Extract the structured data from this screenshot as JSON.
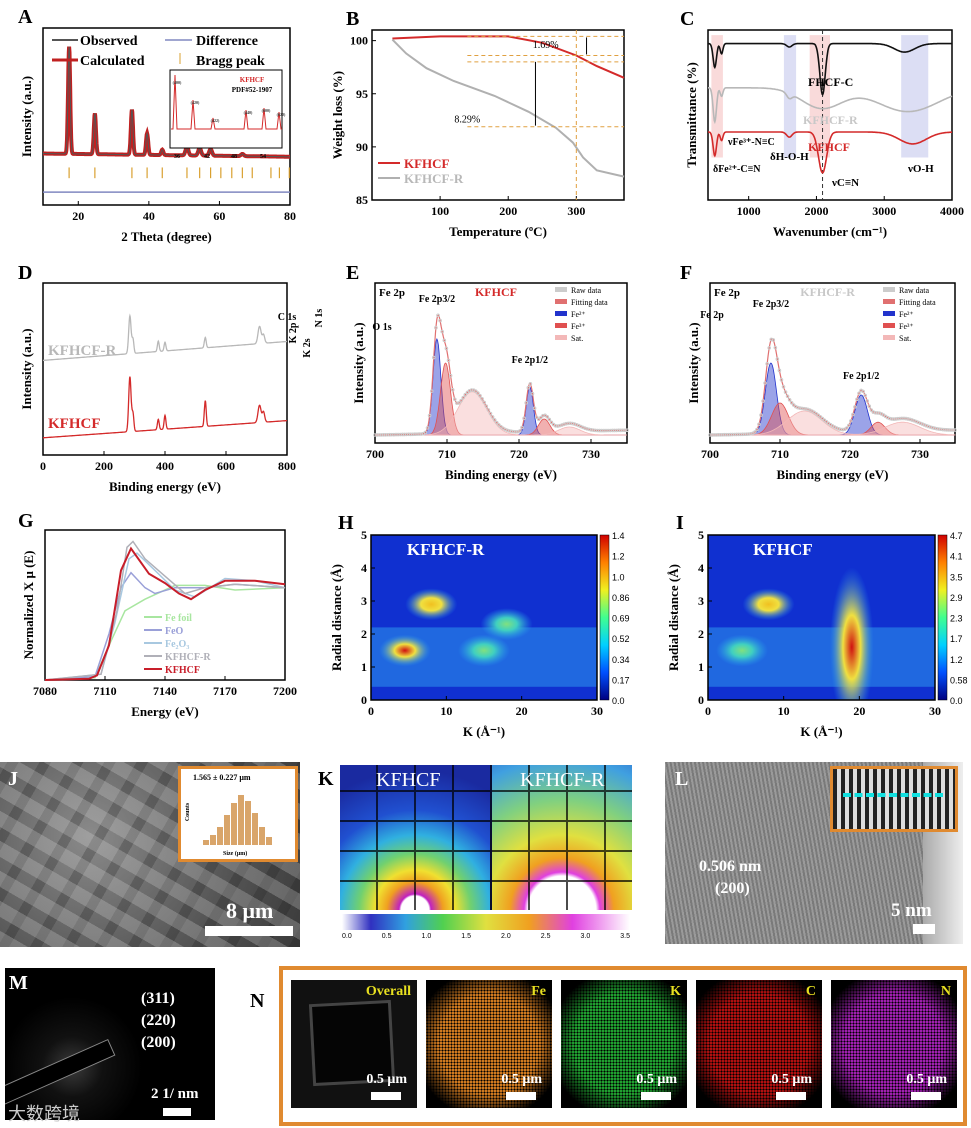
{
  "panels": {
    "A": "A",
    "B": "B",
    "C": "C",
    "D": "D",
    "E": "E",
    "F": "F",
    "G": "G",
    "H": "H",
    "I": "I",
    "J": "J",
    "K": "K",
    "L": "L",
    "M": "M",
    "N": "N"
  },
  "chart_data": {
    "A": {
      "type": "line",
      "xlabel": "2 Theta (degree)",
      "ylabel": "Intensity (a.u.)",
      "xlim": [
        10,
        80
      ],
      "ylim": [
        -0.45,
        1.2
      ],
      "xticks": [
        20,
        40,
        60,
        80
      ],
      "legend": [
        "Observed",
        "Difference",
        "Calculated",
        "Bragg peak"
      ],
      "peaks": [
        [
          17.4,
          1.0,
          0.3
        ],
        [
          24.7,
          0.38,
          0.3
        ],
        [
          35.2,
          0.42,
          0.3
        ],
        [
          39.5,
          0.2,
          0.3
        ],
        [
          43.8,
          0.05,
          0.3
        ],
        [
          50.8,
          0.08,
          0.4
        ],
        [
          54.4,
          0.07,
          0.4
        ],
        [
          57.5,
          0.06,
          0.4
        ],
        [
          66.5,
          0.02,
          0.4
        ]
      ],
      "baseline": [
        0.03,
        0.0
      ],
      "bragg": [
        17.4,
        24.7,
        35.2,
        39.5,
        43.8,
        50.8,
        54.4,
        57.5,
        60.4,
        63.5,
        66.5,
        69.3,
        74.6,
        77.0,
        79.8
      ],
      "inset": {
        "title": "KFHCF",
        "ref": "PDF#52-1907",
        "xticks": [
          36,
          42,
          48,
          54
        ],
        "hkl": [
          "(400)",
          "(420)",
          "(422)",
          "(440)",
          "(600)",
          "(620)"
        ]
      }
    },
    "B": {
      "type": "line",
      "xlabel": "Temperature (ºC)",
      "ylabel": "Weight loss (%)",
      "xlim": [
        0,
        370
      ],
      "ylim": [
        85,
        101
      ],
      "xticks": [
        100,
        200,
        300
      ],
      "yticks": [
        85,
        90,
        95,
        100
      ],
      "series": [
        {
          "name": "KFHCF",
          "color": "#d42a2a",
          "points": [
            [
              30,
              100.2
            ],
            [
              100,
              100.4
            ],
            [
              200,
              100.4
            ],
            [
              250,
              99.8
            ],
            [
              300,
              98.6
            ],
            [
              330,
              97.6
            ],
            [
              370,
              96.5
            ]
          ]
        },
        {
          "name": "KFHCF-R",
          "color": "#b0b0b0",
          "points": [
            [
              30,
              100.1
            ],
            [
              50,
              98.8
            ],
            [
              80,
              97.4
            ],
            [
              120,
              96.2
            ],
            [
              180,
              94.8
            ],
            [
              230,
              93.3
            ],
            [
              270,
              91.8
            ],
            [
              295,
              90.4
            ],
            [
              310,
              89.0
            ],
            [
              330,
              87.8
            ],
            [
              370,
              87.2
            ]
          ]
        }
      ],
      "annotations": [
        "1.69%",
        "8.29%"
      ]
    },
    "C": {
      "type": "line",
      "xlabel": "Wavenumber (cm⁻¹)",
      "ylabel": "Transmittance (%)",
      "xlim": [
        400,
        4000
      ],
      "ylim": [
        0,
        1
      ],
      "xticks": [
        1000,
        2000,
        3000,
        4000
      ],
      "series": [
        {
          "name": "FHCF-C",
          "color": "#111",
          "baseline": [
            0.92,
            0.92
          ],
          "peaks": [
            [
              500,
              -0.14,
              25
            ],
            [
              600,
              -0.06,
              20
            ],
            [
              1600,
              -0.02,
              40
            ],
            [
              2090,
              -0.3,
              40
            ],
            [
              3300,
              -0.05,
              150
            ]
          ]
        },
        {
          "name": "KFHCF-R",
          "color": "#b8b8b8",
          "baseline": [
            0.66,
            0.66
          ],
          "peaks": [
            [
              500,
              -0.2,
              25
            ],
            [
              600,
              -0.05,
              20
            ],
            [
              1600,
              -0.03,
              40
            ],
            [
              2080,
              -0.12,
              300
            ],
            [
              3350,
              -0.14,
              450
            ]
          ]
        },
        {
          "name": "KFHCF",
          "color": "#d42a2a",
          "baseline": [
            0.4,
            0.4
          ],
          "peaks": [
            [
              500,
              -0.14,
              25
            ],
            [
              600,
              -0.05,
              20
            ],
            [
              1600,
              -0.03,
              40
            ],
            [
              2090,
              -0.24,
              60
            ],
            [
              3420,
              -0.07,
              200
            ]
          ]
        }
      ],
      "annotations": [
        "νFe³⁺-N≡C",
        "δFe²⁺-C≡N",
        "δH-O-H",
        "νC≡N",
        "νO-H"
      ]
    },
    "D": {
      "type": "line",
      "xlabel": "Binding energy (eV)",
      "ylabel": "Intensity (a.u.)",
      "xlim": [
        0,
        800
      ],
      "ylim": [
        0,
        1
      ],
      "xticks": [
        0,
        200,
        400,
        600,
        800
      ],
      "series": [
        {
          "name": "KFHCF-R",
          "color": "#b8b8b8",
          "baseline": [
            0.55,
            0.66
          ],
          "peaks": [
            [
              285,
              0.22,
              4
            ],
            [
              295,
              0.08,
              3
            ],
            [
              378,
              0.06,
              3
            ],
            [
              400,
              0.05,
              3
            ],
            [
              532,
              0.06,
              3
            ],
            [
              710,
              0.1,
              5
            ],
            [
              723,
              0.05,
              4
            ]
          ]
        },
        {
          "name": "KFHCF",
          "color": "#d42a2a",
          "baseline": [
            0.1,
            0.2
          ],
          "peaks": [
            [
              285,
              0.32,
              4
            ],
            [
              295,
              0.1,
              3
            ],
            [
              378,
              0.06,
              3
            ],
            [
              400,
              0.08,
              3
            ],
            [
              532,
              0.15,
              3
            ],
            [
              710,
              0.1,
              5
            ],
            [
              723,
              0.06,
              4
            ]
          ]
        }
      ],
      "peak_labels": [
        "C 1s",
        "K 2p",
        "K 2s",
        "N 1s",
        "O 1s",
        "Fe 2p"
      ]
    },
    "E": {
      "type": "line",
      "title": "Fe 2p",
      "sample": "KFHCF",
      "xlabel": "Binding energy (eV)",
      "ylabel": "Intensity (a.u.)",
      "xlim": [
        700,
        735
      ],
      "ylim": [
        0,
        1
      ],
      "xticks": [
        700,
        710,
        720,
        730
      ],
      "components": [
        {
          "name": "Fe²⁺",
          "color": "#2233cc",
          "peaks": [
            [
              708.6,
              0.6,
              0.55
            ],
            [
              721.5,
              0.3,
              0.5
            ]
          ]
        },
        {
          "name": "Fe³⁺",
          "color": "#e05050",
          "peaks": [
            [
              709.8,
              0.45,
              0.7
            ],
            [
              723.5,
              0.1,
              0.8
            ]
          ]
        },
        {
          "name": "Sat.",
          "color": "#f3b8b8",
          "peaks": [
            [
              713.5,
              0.27,
              2.0
            ],
            [
              727,
              0.05,
              1.5
            ]
          ]
        }
      ],
      "legend": [
        "Raw data",
        "Fitting data",
        "Fe²⁺",
        "Fe³⁺",
        "Sat."
      ],
      "peak_labels": [
        "Fe 2p3/2",
        "Fe 2p1/2"
      ]
    },
    "F": {
      "type": "line",
      "title": "Fe 2p",
      "sample": "KFHCF-R",
      "xlabel": "Binding energy (eV)",
      "ylabel": "Intensity (a.u.)",
      "xlim": [
        700,
        735
      ],
      "ylim": [
        0,
        1
      ],
      "xticks": [
        700,
        710,
        720,
        730
      ],
      "components": [
        {
          "name": "Fe²⁺",
          "color": "#2233cc",
          "peaks": [
            [
              708.7,
              0.45,
              0.8
            ],
            [
              721.6,
              0.25,
              0.9
            ]
          ]
        },
        {
          "name": "Fe³⁺",
          "color": "#e05050",
          "peaks": [
            [
              710.0,
              0.2,
              1.2
            ],
            [
              724,
              0.08,
              1.0
            ]
          ]
        },
        {
          "name": "Sat.",
          "color": "#f3b8b8",
          "peaks": [
            [
              713.5,
              0.15,
              2.5
            ],
            [
              727.5,
              0.08,
              2.5
            ]
          ]
        }
      ],
      "legend": [
        "Raw data",
        "Fitting data",
        "Fe²⁺",
        "Fe³⁺",
        "Sat."
      ],
      "peak_labels": [
        "Fe 2p3/2",
        "Fe 2p1/2"
      ]
    },
    "G": {
      "type": "line",
      "xlabel": "Energy (eV)",
      "ylabel": "Normalized X μ (E)",
      "xlim": [
        7080,
        7200
      ],
      "ylim": [
        0,
        1.3
      ],
      "xticks": [
        7080,
        7110,
        7140,
        7170,
        7200
      ],
      "series": [
        {
          "name": "Fe foil",
          "color": "#a8e6a0",
          "points": [
            [
              7080,
              0
            ],
            [
              7105,
              0.02
            ],
            [
              7112,
              0.3
            ],
            [
              7120,
              0.6
            ],
            [
              7130,
              0.7
            ],
            [
              7145,
              0.82
            ],
            [
              7160,
              0.82
            ],
            [
              7175,
              0.78
            ],
            [
              7200,
              0.8
            ]
          ]
        },
        {
          "name": "FeO",
          "color": "#9aa0d8",
          "points": [
            [
              7080,
              0
            ],
            [
              7105,
              0.03
            ],
            [
              7112,
              0.4
            ],
            [
              7118,
              0.8
            ],
            [
              7123,
              0.93
            ],
            [
              7130,
              0.8
            ],
            [
              7135,
              0.75
            ],
            [
              7145,
              0.8
            ],
            [
              7160,
              0.8
            ],
            [
              7175,
              0.83
            ],
            [
              7200,
              0.8
            ]
          ]
        },
        {
          "name": "Fe₂O₃",
          "color": "#a8c8e0",
          "points": [
            [
              7080,
              0
            ],
            [
              7108,
              0.05
            ],
            [
              7115,
              0.5
            ],
            [
              7122,
              1.05
            ],
            [
              7126,
              1.1
            ],
            [
              7135,
              0.95
            ],
            [
              7145,
              0.78
            ],
            [
              7155,
              0.72
            ],
            [
              7170,
              0.88
            ],
            [
              7185,
              0.86
            ],
            [
              7200,
              0.8
            ]
          ]
        },
        {
          "name": "KFHCF-R",
          "color": "#b0b0b8",
          "points": [
            [
              7080,
              0
            ],
            [
              7108,
              0.05
            ],
            [
              7116,
              0.6
            ],
            [
              7121,
              1.15
            ],
            [
              7124,
              1.2
            ],
            [
              7130,
              1.05
            ],
            [
              7140,
              0.9
            ],
            [
              7150,
              0.75
            ],
            [
              7160,
              0.8
            ],
            [
              7175,
              0.83
            ],
            [
              7200,
              0.8
            ]
          ]
        },
        {
          "name": "KFHCF",
          "color": "#c81e2a",
          "points": [
            [
              7080,
              0
            ],
            [
              7102,
              0.01
            ],
            [
              7106,
              0.04
            ],
            [
              7112,
              0.3
            ],
            [
              7118,
              0.95
            ],
            [
              7123,
              1.14
            ],
            [
              7132,
              0.92
            ],
            [
              7140,
              0.84
            ],
            [
              7147,
              0.75
            ],
            [
              7153,
              0.7
            ],
            [
              7160,
              0.78
            ],
            [
              7170,
              0.86
            ],
            [
              7185,
              0.86
            ],
            [
              7200,
              0.83
            ]
          ]
        }
      ]
    },
    "H": {
      "type": "heatmap",
      "sample": "KFHCF-R",
      "xlabel": "K (Å⁻¹)",
      "ylabel": "Radial distance (Å)",
      "xlim": [
        0,
        30
      ],
      "ylim": [
        0,
        5
      ],
      "xticks": [
        0,
        10,
        20,
        30
      ],
      "yticks": [
        0,
        1,
        2,
        3,
        4,
        5
      ],
      "colorbar": [
        "1.4",
        "1.2",
        "1.0",
        "0.86",
        "0.69",
        "0.52",
        "0.34",
        "0.17",
        "0.0"
      ],
      "spots": [
        [
          4.5,
          1.5,
          1.4
        ],
        [
          8,
          2.9,
          0.8
        ],
        [
          15,
          1.5,
          0.3
        ],
        [
          18,
          2.3,
          0.2
        ]
      ]
    },
    "I": {
      "type": "heatmap",
      "sample": "KFHCF",
      "xlabel": "K (Å⁻¹)",
      "ylabel": "Radial distance (Å)",
      "xlim": [
        0,
        30
      ],
      "ylim": [
        0,
        5
      ],
      "xticks": [
        0,
        10,
        20,
        30
      ],
      "yticks": [
        0,
        1,
        2,
        3,
        4,
        5
      ],
      "colorbar": [
        "4.7",
        "4.1",
        "3.5",
        "2.9",
        "2.3",
        "1.7",
        "1.2",
        "0.58",
        "0.0"
      ],
      "spots": [
        [
          19,
          1.6,
          4.7
        ],
        [
          8,
          2.9,
          3.0
        ],
        [
          4.5,
          1.5,
          1.0
        ]
      ]
    }
  },
  "J": {
    "hist_label": "1.565 ± 0.227 μm",
    "hist_x": "Size (μm)",
    "hist_y": "Counts",
    "scale": "8 μm"
  },
  "K": {
    "left": "KFHCF",
    "right": "KFHCF-R",
    "ticks": [
      "0.0",
      "0.5",
      "1.0",
      "1.5",
      "2.0",
      "2.5",
      "3.0",
      "3.5"
    ]
  },
  "L": {
    "d": "0.506 nm",
    "hkl": "(200)",
    "scale": "5 nm"
  },
  "M": {
    "rings": [
      "(311)",
      "(220)",
      "(200)"
    ],
    "scale": "2 1/ nm"
  },
  "N": {
    "maps": [
      {
        "label": "Overall",
        "scale": "0.5 μm",
        "color": "#222"
      },
      {
        "label": "Fe",
        "scale": "0.5 μm",
        "color": "#d07a20"
      },
      {
        "label": "K",
        "scale": "0.5 μm",
        "color": "#20a030"
      },
      {
        "label": "C",
        "scale": "0.5 μm",
        "color": "#b01010"
      },
      {
        "label": "N",
        "scale": "0.5 μm",
        "color": "#a020b0"
      }
    ]
  },
  "watermark": "大数跨境"
}
